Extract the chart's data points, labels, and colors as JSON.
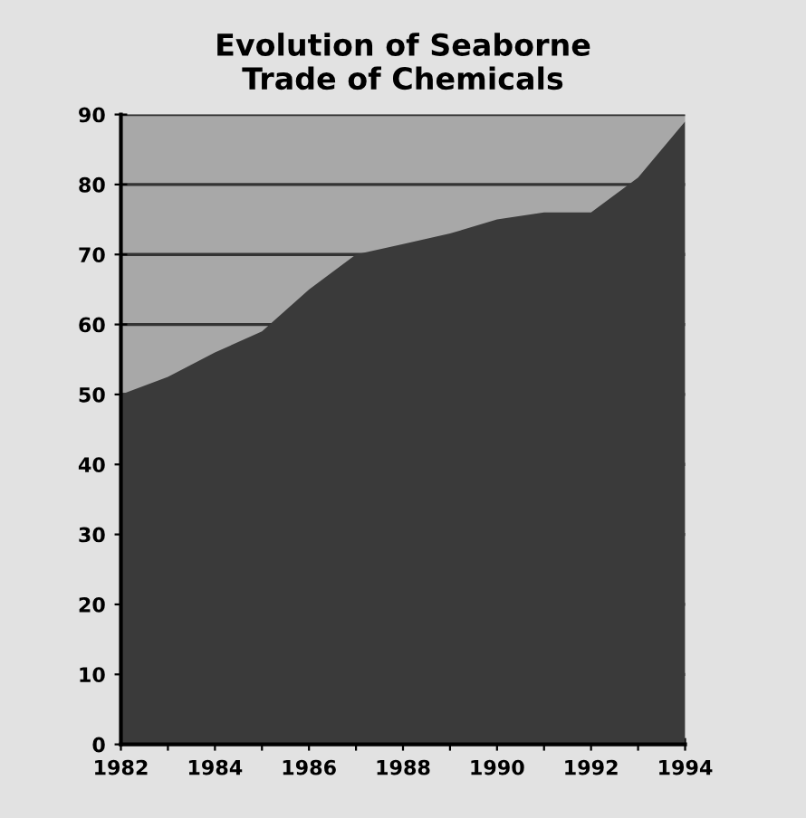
{
  "chart_data": {
    "type": "area",
    "title": "Evolution of Seaborne\nTrade of Chemicals",
    "x": [
      1982,
      1983,
      1984,
      1985,
      1986,
      1987,
      1988,
      1989,
      1990,
      1991,
      1992,
      1993,
      1994
    ],
    "series": [
      {
        "color": "#3a3a3a",
        "values": [
          50,
          52.5,
          56,
          59,
          65,
          70,
          71.5,
          73,
          75,
          76,
          76,
          81,
          89
        ]
      }
    ],
    "xlim": [
      1982,
      1994
    ],
    "xticks": [
      1982,
      {
        "value": 1983,
        "label": null
      },
      1984,
      {
        "value": 1985,
        "label": null
      },
      1986,
      {
        "value": 1987,
        "label": null
      },
      1988,
      {
        "value": 1989,
        "label": null
      },
      1990,
      {
        "value": 1991,
        "label": null
      },
      1992,
      {
        "value": 1993,
        "label": null
      },
      1994
    ],
    "ylim": [
      0,
      90
    ],
    "yticks": [
      0,
      10,
      20,
      30,
      40,
      50,
      60,
      70,
      80,
      90
    ],
    "grid": "y",
    "legend": false
  }
}
